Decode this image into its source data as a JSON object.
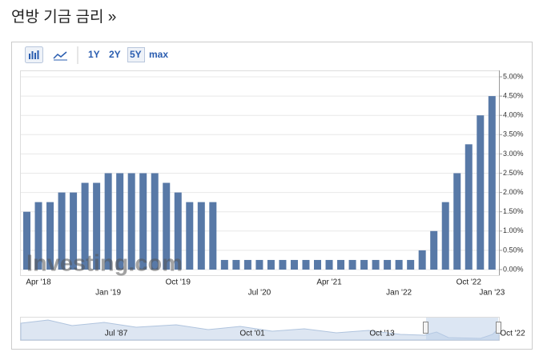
{
  "chart_data": {
    "type": "bar",
    "title": "연방 기금 금리 »",
    "ranges": [
      "1Y",
      "2Y",
      "5Y",
      "max"
    ],
    "watermark": "Investing.com",
    "color": "#5879a7",
    "grid": true,
    "categories": [
      null,
      "Apr '18",
      null,
      null,
      null,
      null,
      null,
      "Jan '19",
      null,
      null,
      null,
      null,
      null,
      "Oct '19",
      null,
      null,
      null,
      null,
      null,
      null,
      "Jul '20",
      null,
      null,
      null,
      null,
      null,
      "Apr '21",
      null,
      null,
      null,
      null,
      null,
      "Jan '22",
      null,
      null,
      null,
      null,
      null,
      "Oct '22",
      null,
      "Jan '23"
    ],
    "values": [
      1.5,
      1.75,
      1.75,
      2.0,
      2.0,
      2.25,
      2.25,
      2.5,
      2.5,
      2.5,
      2.5,
      2.5,
      2.25,
      2.0,
      1.75,
      1.75,
      1.75,
      0.25,
      0.25,
      0.25,
      0.25,
      0.25,
      0.25,
      0.25,
      0.25,
      0.25,
      0.25,
      0.25,
      0.25,
      0.25,
      0.25,
      0.25,
      0.25,
      0.25,
      0.5,
      1.0,
      1.75,
      2.5,
      3.25,
      4.0,
      4.5
    ],
    "ylim": [
      0,
      5
    ],
    "yticks": [
      {
        "value": 0,
        "label": "0.00%"
      },
      {
        "value": 0.5,
        "label": "0.50%"
      },
      {
        "value": 1,
        "label": "1.00%"
      },
      {
        "value": 1.5,
        "label": "1.50%"
      },
      {
        "value": 2,
        "label": "2.00%"
      },
      {
        "value": 2.5,
        "label": "2.50%"
      },
      {
        "value": 3,
        "label": "3.00%"
      },
      {
        "value": 3.5,
        "label": "3.50%"
      },
      {
        "value": 4,
        "label": "4.00%"
      },
      {
        "value": 4.5,
        "label": "4.50%"
      },
      {
        "value": 5,
        "label": "5.00%"
      }
    ],
    "navigator_labels": [
      "Jul '87",
      "Oct '01",
      "Oct '13",
      "Oct '22"
    ]
  }
}
